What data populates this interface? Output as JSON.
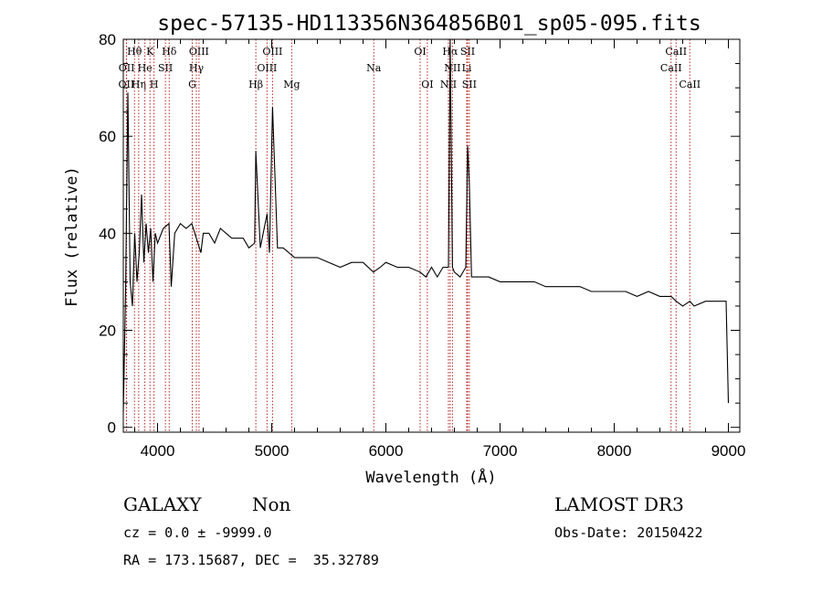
{
  "chart_data": {
    "type": "line",
    "title": "spec-57135-HD113356N364856B01_sp05-095.fits",
    "xlabel": "Wavelength (Å)",
    "ylabel": "Flux (relative)",
    "xlim": [
      3700,
      9100
    ],
    "ylim": [
      -1,
      80
    ],
    "x_ticks": [
      4000,
      5000,
      6000,
      7000,
      8000,
      9000
    ],
    "y_ticks": [
      0,
      20,
      40,
      60,
      80
    ],
    "grid": false,
    "series": [
      {
        "color": "#000000",
        "x": [
          3700,
          3720,
          3740,
          3760,
          3780,
          3800,
          3820,
          3840,
          3860,
          3880,
          3900,
          3920,
          3940,
          3960,
          3980,
          4000,
          4050,
          4100,
          4120,
          4150,
          4200,
          4250,
          4300,
          4340,
          4380,
          4400,
          4450,
          4500,
          4550,
          4600,
          4650,
          4700,
          4750,
          4800,
          4850,
          4861,
          4900,
          4959,
          4980,
          5007,
          5050,
          5100,
          5150,
          5200,
          5300,
          5400,
          5500,
          5600,
          5700,
          5800,
          5890,
          5950,
          6000,
          6100,
          6200,
          6300,
          6350,
          6400,
          6450,
          6500,
          6548,
          6563,
          6583,
          6600,
          6650,
          6700,
          6716,
          6731,
          6750,
          6800,
          6900,
          7000,
          7100,
          7200,
          7300,
          7400,
          7500,
          7600,
          7700,
          7800,
          7900,
          8000,
          8100,
          8200,
          8300,
          8400,
          8498,
          8542,
          8600,
          8662,
          8700,
          8800,
          8900,
          8980,
          9000
        ],
        "y": [
          3,
          28,
          69,
          30,
          25,
          40,
          30,
          36,
          48,
          34,
          42,
          36,
          41,
          30,
          40,
          38,
          41,
          42,
          29,
          40,
          42,
          41,
          42,
          39,
          36,
          40,
          40,
          38,
          41,
          40,
          39,
          39,
          39,
          37,
          38,
          57,
          37,
          44,
          36,
          66,
          37,
          37,
          36,
          35,
          35,
          35,
          34,
          33,
          34,
          34,
          32,
          33,
          34,
          33,
          33,
          32,
          31,
          33,
          31,
          33,
          33,
          80,
          33,
          32,
          31,
          33,
          58,
          50,
          31,
          31,
          31,
          30,
          30,
          30,
          30,
          29,
          29,
          29,
          29,
          28,
          28,
          28,
          28,
          27,
          28,
          27,
          27,
          26,
          25,
          26,
          25,
          26,
          26,
          26,
          5
        ]
      }
    ],
    "lines": [
      {
        "name": "OII",
        "x": 3727,
        "row": 2
      },
      {
        "name": "OII",
        "x": 3729,
        "row": 1
      },
      {
        "name": "Hθ",
        "x": 3798,
        "row": 0
      },
      {
        "name": "Hη",
        "x": 3835,
        "row": 2
      },
      {
        "name": "He",
        "x": 3889,
        "row": 1
      },
      {
        "name": "K",
        "x": 3934,
        "row": 0
      },
      {
        "name": "H",
        "x": 3969,
        "row": 2
      },
      {
        "name": "SII",
        "x": 4069,
        "row": 1
      },
      {
        "name": "Hδ",
        "x": 4102,
        "row": 0
      },
      {
        "name": "G",
        "x": 4304,
        "row": 2
      },
      {
        "name": "Hγ",
        "x": 4340,
        "row": 1
      },
      {
        "name": "OIII",
        "x": 4363,
        "row": 0
      },
      {
        "name": "Hβ",
        "x": 4861,
        "row": 2
      },
      {
        "name": "OIII",
        "x": 4959,
        "row": 1
      },
      {
        "name": "OIII",
        "x": 5007,
        "row": 0
      },
      {
        "name": "Mg",
        "x": 5175,
        "row": 2
      },
      {
        "name": "Na",
        "x": 5894,
        "row": 1
      },
      {
        "name": "OI",
        "x": 6300,
        "row": 0
      },
      {
        "name": "OI",
        "x": 6363,
        "row": 2
      },
      {
        "name": "NII",
        "x": 6548,
        "row": 2
      },
      {
        "name": "Hα",
        "x": 6563,
        "row": 0
      },
      {
        "name": "NII",
        "x": 6583,
        "row": 1
      },
      {
        "name": "Li",
        "x": 6708,
        "row": 1
      },
      {
        "name": "SII",
        "x": 6716,
        "row": 0
      },
      {
        "name": "SII",
        "x": 6731,
        "row": 2
      },
      {
        "name": "CaII",
        "x": 8498,
        "row": 1
      },
      {
        "name": "CaII",
        "x": 8542,
        "row": 0
      },
      {
        "name": "CaII",
        "x": 8662,
        "row": 2
      }
    ],
    "line_color": "#b22222"
  },
  "info": {
    "object_class": "GALAXY",
    "subclass": "Non",
    "survey": "LAMOST DR3",
    "cz": "cz = 0.0 ± -9999.0",
    "obs_date": "Obs-Date: 20150422",
    "radec": "RA = 173.15687, DEC =  35.32789"
  }
}
